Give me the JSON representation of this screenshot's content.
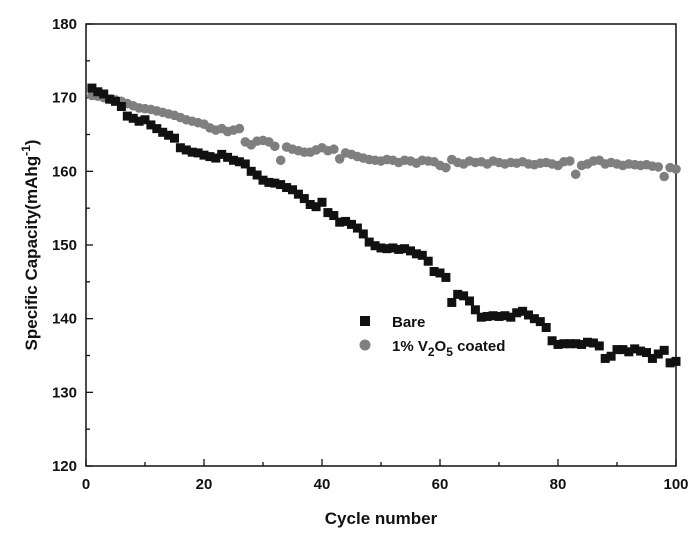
{
  "chart_data": {
    "type": "scatter",
    "xlabel": "Cycle number",
    "ylabel": "Specific Capacity(mAhg",
    "ylabel_sup": "-1",
    "ylabel_end": ")",
    "xlim": [
      0,
      100
    ],
    "ylim": [
      120,
      180
    ],
    "xticks": [
      "0",
      "20",
      "40",
      "60",
      "80",
      "100"
    ],
    "yticks": [
      "120",
      "130",
      "140",
      "150",
      "160",
      "170",
      "180"
    ],
    "grid": false,
    "legend_position": "center-right",
    "series": [
      {
        "name": "Bare",
        "marker": "square",
        "color": "#111111",
        "x": [
          1,
          2,
          3,
          4,
          5,
          6,
          7,
          8,
          9,
          10,
          11,
          12,
          13,
          14,
          15,
          16,
          17,
          18,
          19,
          20,
          21,
          22,
          23,
          24,
          25,
          26,
          27,
          28,
          29,
          30,
          31,
          32,
          33,
          34,
          35,
          36,
          37,
          38,
          39,
          40,
          41,
          42,
          43,
          44,
          45,
          46,
          47,
          48,
          49,
          50,
          51,
          52,
          53,
          54,
          55,
          56,
          57,
          58,
          59,
          60,
          61,
          62,
          63,
          64,
          65,
          66,
          67,
          68,
          69,
          70,
          71,
          72,
          73,
          74,
          75,
          76,
          77,
          78,
          79,
          80,
          81,
          82,
          83,
          84,
          85,
          86,
          87,
          88,
          89,
          90,
          91,
          92,
          93,
          94,
          95,
          96,
          97,
          98,
          99,
          100
        ],
        "y": [
          171.3,
          170.8,
          170.5,
          169.8,
          169.5,
          168.8,
          167.5,
          167.2,
          166.8,
          167.0,
          166.3,
          165.8,
          165.3,
          164.9,
          164.5,
          163.2,
          162.9,
          162.6,
          162.5,
          162.2,
          162.0,
          161.8,
          162.3,
          161.9,
          161.5,
          161.3,
          161.0,
          160.0,
          159.5,
          158.8,
          158.5,
          158.4,
          158.2,
          157.8,
          157.5,
          156.9,
          156.3,
          155.5,
          155.2,
          155.8,
          154.4,
          154.0,
          153.1,
          153.2,
          152.8,
          152.3,
          151.5,
          150.4,
          149.9,
          149.6,
          149.5,
          149.6,
          149.4,
          149.5,
          149.2,
          148.8,
          148.6,
          147.8,
          146.4,
          146.2,
          145.6,
          142.2,
          143.3,
          143.1,
          142.4,
          141.2,
          140.2,
          140.3,
          140.4,
          140.3,
          140.4,
          140.2,
          140.8,
          141.0,
          140.5,
          140.0,
          139.6,
          138.8,
          137.0,
          136.5,
          136.6,
          136.6,
          136.6,
          136.5,
          136.8,
          136.7,
          136.3,
          134.6,
          134.9,
          135.8,
          135.8,
          135.5,
          135.9,
          135.6,
          135.4,
          134.6,
          135.2,
          135.7,
          134.0,
          134.2
        ]
      },
      {
        "name": "1% V2O5 coated",
        "name_parts": [
          "1% V",
          "2",
          "O",
          "5",
          " coated"
        ],
        "marker": "circle",
        "color": "#7f7f7f",
        "x": [
          1,
          2,
          3,
          4,
          5,
          6,
          7,
          8,
          9,
          10,
          11,
          12,
          13,
          14,
          15,
          16,
          17,
          18,
          19,
          20,
          21,
          22,
          23,
          24,
          25,
          26,
          27,
          28,
          29,
          30,
          31,
          32,
          33,
          34,
          35,
          36,
          37,
          38,
          39,
          40,
          41,
          42,
          43,
          44,
          45,
          46,
          47,
          48,
          49,
          50,
          51,
          52,
          53,
          54,
          55,
          56,
          57,
          58,
          59,
          60,
          61,
          62,
          63,
          64,
          65,
          66,
          67,
          68,
          69,
          70,
          71,
          72,
          73,
          74,
          75,
          76,
          77,
          78,
          79,
          80,
          81,
          82,
          83,
          84,
          85,
          86,
          87,
          88,
          89,
          90,
          91,
          92,
          93,
          94,
          95,
          96,
          97,
          98,
          99,
          100
        ],
        "y": [
          170.3,
          170.2,
          170.0,
          169.8,
          169.7,
          169.5,
          169.2,
          168.9,
          168.6,
          168.5,
          168.4,
          168.2,
          168.0,
          167.8,
          167.6,
          167.3,
          167.0,
          166.8,
          166.6,
          166.4,
          165.9,
          165.6,
          165.8,
          165.4,
          165.6,
          165.8,
          164.0,
          163.6,
          164.1,
          164.2,
          164.0,
          163.4,
          161.5,
          163.3,
          163.0,
          162.8,
          162.6,
          162.6,
          162.9,
          163.2,
          162.8,
          163.0,
          161.7,
          162.5,
          162.3,
          162.0,
          161.8,
          161.6,
          161.5,
          161.4,
          161.6,
          161.5,
          161.2,
          161.5,
          161.4,
          161.1,
          161.5,
          161.4,
          161.3,
          160.8,
          160.5,
          161.6,
          161.2,
          161.0,
          161.4,
          161.2,
          161.3,
          161.0,
          161.4,
          161.2,
          161.0,
          161.2,
          161.1,
          161.3,
          161.0,
          160.9,
          161.1,
          161.2,
          161.0,
          160.8,
          161.3,
          161.4,
          159.6,
          160.8,
          161.0,
          161.4,
          161.5,
          161.0,
          161.2,
          161.0,
          160.8,
          161.0,
          160.9,
          160.8,
          160.9,
          160.7,
          160.6,
          159.3,
          160.5,
          160.3
        ]
      }
    ]
  }
}
